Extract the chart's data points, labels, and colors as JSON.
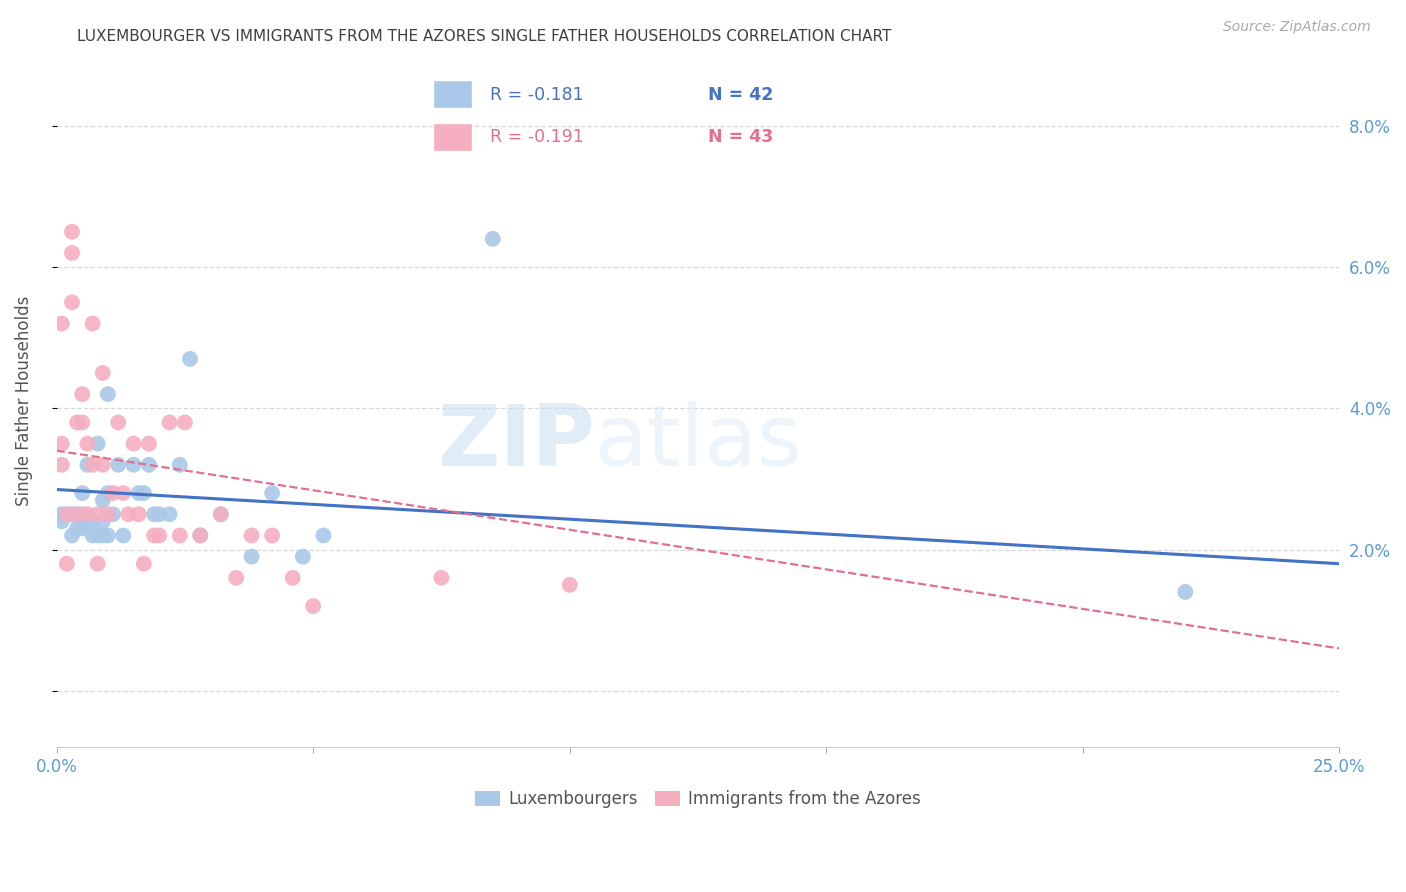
{
  "title": "LUXEMBOURGER VS IMMIGRANTS FROM THE AZORES SINGLE FATHER HOUSEHOLDS CORRELATION CHART",
  "source": "Source: ZipAtlas.com",
  "ylabel": "Single Father Households",
  "xlim": [
    0.0,
    0.25
  ],
  "ylim": [
    -0.008,
    0.09
  ],
  "yticks": [
    0.0,
    0.02,
    0.04,
    0.06,
    0.08
  ],
  "xticks": [
    0.0,
    0.05,
    0.1,
    0.15,
    0.2,
    0.25
  ],
  "xtick_labels": [
    "0.0%",
    "",
    "",
    "",
    "",
    "25.0%"
  ],
  "ytick_labels": [
    "",
    "2.0%",
    "4.0%",
    "6.0%",
    "8.0%"
  ],
  "watermark_zip": "ZIP",
  "watermark_atlas": "atlas",
  "legend_blue_r": "R = -0.181",
  "legend_blue_n": "N = 42",
  "legend_pink_r": "R = -0.191",
  "legend_pink_n": "N = 43",
  "blue_dot_color": "#aac8e8",
  "pink_dot_color": "#f5aec0",
  "blue_line_color": "#4472c4",
  "pink_line_color": "#e07090",
  "axis_color": "#5b9bd5",
  "title_color": "#404040",
  "source_color": "#aaaaaa",
  "grid_color": "#d8d8d8",
  "blue_x": [
    0.001,
    0.001,
    0.002,
    0.003,
    0.003,
    0.004,
    0.004,
    0.005,
    0.005,
    0.005,
    0.006,
    0.006,
    0.007,
    0.007,
    0.008,
    0.008,
    0.009,
    0.009,
    0.009,
    0.01,
    0.01,
    0.01,
    0.011,
    0.012,
    0.013,
    0.015,
    0.016,
    0.017,
    0.018,
    0.019,
    0.02,
    0.022,
    0.024,
    0.026,
    0.028,
    0.032,
    0.038,
    0.042,
    0.048,
    0.052,
    0.085,
    0.22
  ],
  "blue_y": [
    0.025,
    0.024,
    0.025,
    0.025,
    0.022,
    0.025,
    0.023,
    0.028,
    0.025,
    0.023,
    0.032,
    0.024,
    0.024,
    0.022,
    0.035,
    0.022,
    0.027,
    0.024,
    0.022,
    0.042,
    0.028,
    0.022,
    0.025,
    0.032,
    0.022,
    0.032,
    0.028,
    0.028,
    0.032,
    0.025,
    0.025,
    0.025,
    0.032,
    0.047,
    0.022,
    0.025,
    0.019,
    0.028,
    0.019,
    0.022,
    0.064,
    0.014
  ],
  "pink_x": [
    0.001,
    0.001,
    0.001,
    0.002,
    0.002,
    0.003,
    0.003,
    0.003,
    0.004,
    0.004,
    0.005,
    0.005,
    0.006,
    0.006,
    0.007,
    0.007,
    0.008,
    0.008,
    0.009,
    0.009,
    0.01,
    0.011,
    0.012,
    0.013,
    0.014,
    0.015,
    0.016,
    0.017,
    0.018,
    0.019,
    0.02,
    0.022,
    0.024,
    0.025,
    0.028,
    0.032,
    0.035,
    0.038,
    0.042,
    0.046,
    0.05,
    0.075,
    0.1
  ],
  "pink_y": [
    0.035,
    0.032,
    0.052,
    0.025,
    0.018,
    0.065,
    0.062,
    0.055,
    0.038,
    0.025,
    0.042,
    0.038,
    0.035,
    0.025,
    0.052,
    0.032,
    0.025,
    0.018,
    0.045,
    0.032,
    0.025,
    0.028,
    0.038,
    0.028,
    0.025,
    0.035,
    0.025,
    0.018,
    0.035,
    0.022,
    0.022,
    0.038,
    0.022,
    0.038,
    0.022,
    0.025,
    0.016,
    0.022,
    0.022,
    0.016,
    0.012,
    0.016,
    0.015
  ],
  "blue_line_x0": 0.0,
  "blue_line_x1": 0.25,
  "blue_line_y0": 0.0285,
  "blue_line_y1": 0.018,
  "pink_line_x0": 0.0,
  "pink_line_x1": 0.25,
  "pink_line_y0": 0.034,
  "pink_line_y1": 0.006
}
